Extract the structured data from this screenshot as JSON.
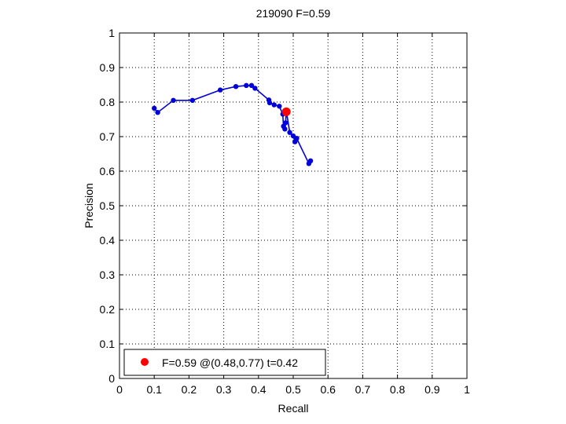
{
  "chart_data": {
    "type": "line",
    "title": "219090 F=0.59",
    "xlabel": "Recall",
    "ylabel": "Precision",
    "xlim": [
      0,
      1
    ],
    "ylim": [
      0,
      1
    ],
    "x_ticks": [
      "0",
      "0.1",
      "0.2",
      "0.3",
      "0.4",
      "0.5",
      "0.6",
      "0.7",
      "0.8",
      "0.9",
      "1"
    ],
    "y_ticks": [
      "0",
      "0.1",
      "0.2",
      "0.3",
      "0.4",
      "0.5",
      "0.6",
      "0.7",
      "0.8",
      "0.9",
      "1"
    ],
    "grid": true,
    "legend_position": "bottom-left",
    "colors": {
      "curve": "#0000d8",
      "best": "#ff0000"
    },
    "series": [
      {
        "x": [
          0.1,
          0.11,
          0.155,
          0.21,
          0.29,
          0.335,
          0.365,
          0.38,
          0.39,
          0.43,
          0.432,
          0.445,
          0.46,
          0.47,
          0.472,
          0.476,
          0.478,
          0.48,
          0.49,
          0.5,
          0.505,
          0.51,
          0.545,
          0.55
        ],
        "y": [
          0.782,
          0.77,
          0.805,
          0.805,
          0.835,
          0.845,
          0.848,
          0.848,
          0.84,
          0.806,
          0.798,
          0.792,
          0.788,
          0.765,
          0.73,
          0.722,
          0.74,
          0.775,
          0.712,
          0.702,
          0.685,
          0.695,
          0.622,
          0.63
        ]
      }
    ],
    "best_point": {
      "x": 0.48,
      "y": 0.772
    },
    "legend": {
      "label": "F=0.59 @(0.48,0.77) t=0.42"
    }
  }
}
